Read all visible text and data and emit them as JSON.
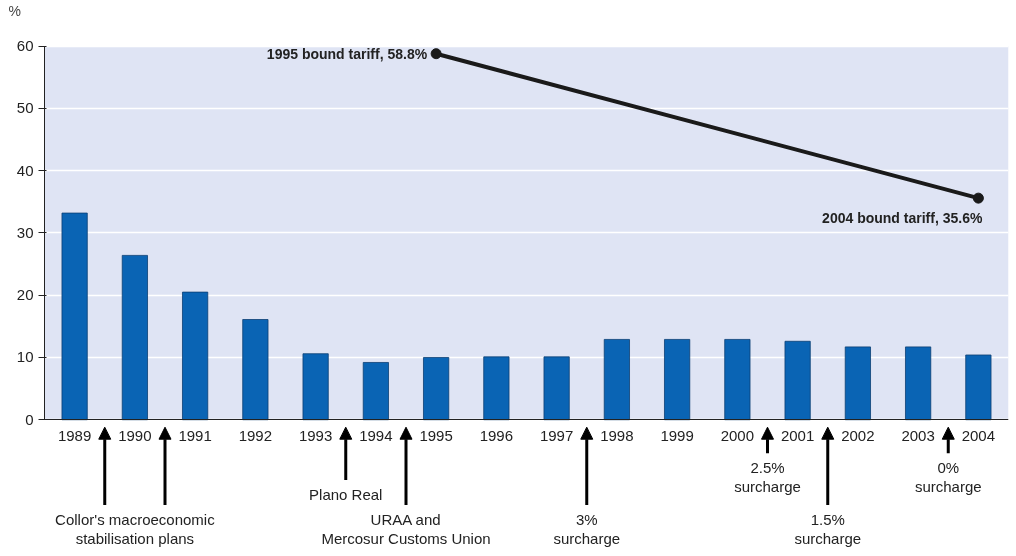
{
  "chart_data": {
    "type": "bar",
    "ylabel": "%",
    "categories": [
      "1989",
      "1990",
      "1991",
      "1992",
      "1993",
      "1994",
      "1995",
      "1996",
      "1997",
      "1998",
      "1999",
      "2000",
      "2001",
      "2002",
      "2003",
      "2004"
    ],
    "series": [
      {
        "color": "#0a64b4",
        "values": [
          33.2,
          26.4,
          20.5,
          16.1,
          10.6,
          9.2,
          10.0,
          10.1,
          10.1,
          12.9,
          12.9,
          12.9,
          12.6,
          11.7,
          11.7,
          10.4
        ]
      },
      {
        "type": "line",
        "color": "#1a1a1a",
        "marker": "circle",
        "values": [
          null,
          null,
          null,
          null,
          null,
          null,
          58.8,
          null,
          null,
          null,
          null,
          null,
          null,
          null,
          null,
          35.6
        ]
      }
    ],
    "ylim": [
      0,
      60
    ],
    "yticks": [
      0,
      10,
      20,
      30,
      40,
      50,
      60
    ],
    "grid": "y",
    "annotations": [
      {
        "text": "1995 bound tariff, 58.8%",
        "x": "1995",
        "y": 58.8
      },
      {
        "text": "2004 bound tariff, 35.6%",
        "x": "2004",
        "y": 35.6
      },
      "Collor's macroeconomic\nstabilisation plans",
      "Plano Real",
      "URAA and\nMercosur Customs Union",
      "3%\nsurcharge",
      "2.5%\nsurcharge",
      "1.5%\nsurcharge",
      "0%\nsurcharge"
    ]
  }
}
